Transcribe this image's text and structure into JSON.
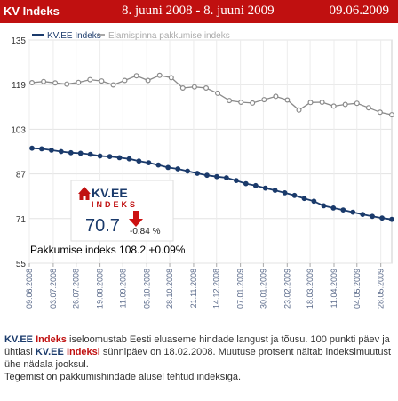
{
  "header": {
    "title": "KV Indeks",
    "range": "8. juuni 2008 - 8. juuni 2009",
    "date": "09.06.2009"
  },
  "badge": {
    "logo_kv": "KV.EE",
    "logo_sub": "INDEKS",
    "value": "70.7",
    "change": "-0.84 %",
    "secondary": "Pakkumise indeks 108.2  +0.09%"
  },
  "description": {
    "brand": "KV.EE",
    "indeks_word": "Indeks",
    "indeksi_word": "Indeksi",
    "line1_rest": " iseloomustab Eesti eluaseme hindade langust ja tõusu. 100 punkti päev ja ühtlasi ",
    "line2_rest": " sünnipäev on 18.02.2008. Muutuse protsent näitab indeksimuutust ühe nädala jooksul.",
    "line3": "Tegemist on pakkumishindade alusel tehtud indeksiga."
  },
  "colors": {
    "header_bg": "#c01010",
    "kv_series": "#1a3a6b",
    "pakkumine_series": "#8a8a8a",
    "down_arrow": "#cc1111"
  },
  "chart_data": {
    "type": "line",
    "legend_position": "top-left",
    "grid": true,
    "ylim": [
      55,
      135
    ],
    "yticks": [
      55,
      71,
      87,
      103,
      119,
      135
    ],
    "xlim": [
      "2008-06-09",
      "2009-06-08"
    ],
    "xtick_labels": [
      "09.06.2008",
      "03.07.2008",
      "26.07.2008",
      "19.08.2008",
      "11.09.2008",
      "05.10.2008",
      "28.10.2008",
      "21.11.2008",
      "14.12.2008",
      "07.01.2009",
      "30.01.2009",
      "23.02.2009",
      "18.03.2009",
      "11.04.2009",
      "04.05.2009",
      "28.05.2009"
    ],
    "series": [
      {
        "name": "KV.EE Indeks",
        "values": [
          96.2,
          96.0,
          95.5,
          95.0,
          94.6,
          94.4,
          94.0,
          93.4,
          93.2,
          92.8,
          92.4,
          91.6,
          91.0,
          90.2,
          89.3,
          88.8,
          88.0,
          87.2,
          86.5,
          86.0,
          85.6,
          84.6,
          83.5,
          82.8,
          81.9,
          81.1,
          80.2,
          79.3,
          78.2,
          77.2,
          75.6,
          74.8,
          74.1,
          73.3,
          72.5,
          71.8,
          71.2,
          70.7
        ]
      },
      {
        "name": "Elamispinna pakkumise indeks",
        "values": [
          119.7,
          120.1,
          119.6,
          119.2,
          119.8,
          120.8,
          120.3,
          118.9,
          120.5,
          122.2,
          120.5,
          122.3,
          121.5,
          117.8,
          118.2,
          117.8,
          115.9,
          113.3,
          112.7,
          112.4,
          113.6,
          114.8,
          113.5,
          109.9,
          112.6,
          112.7,
          111.3,
          111.9,
          112.3,
          110.7,
          109.1,
          108.2
        ]
      }
    ]
  }
}
